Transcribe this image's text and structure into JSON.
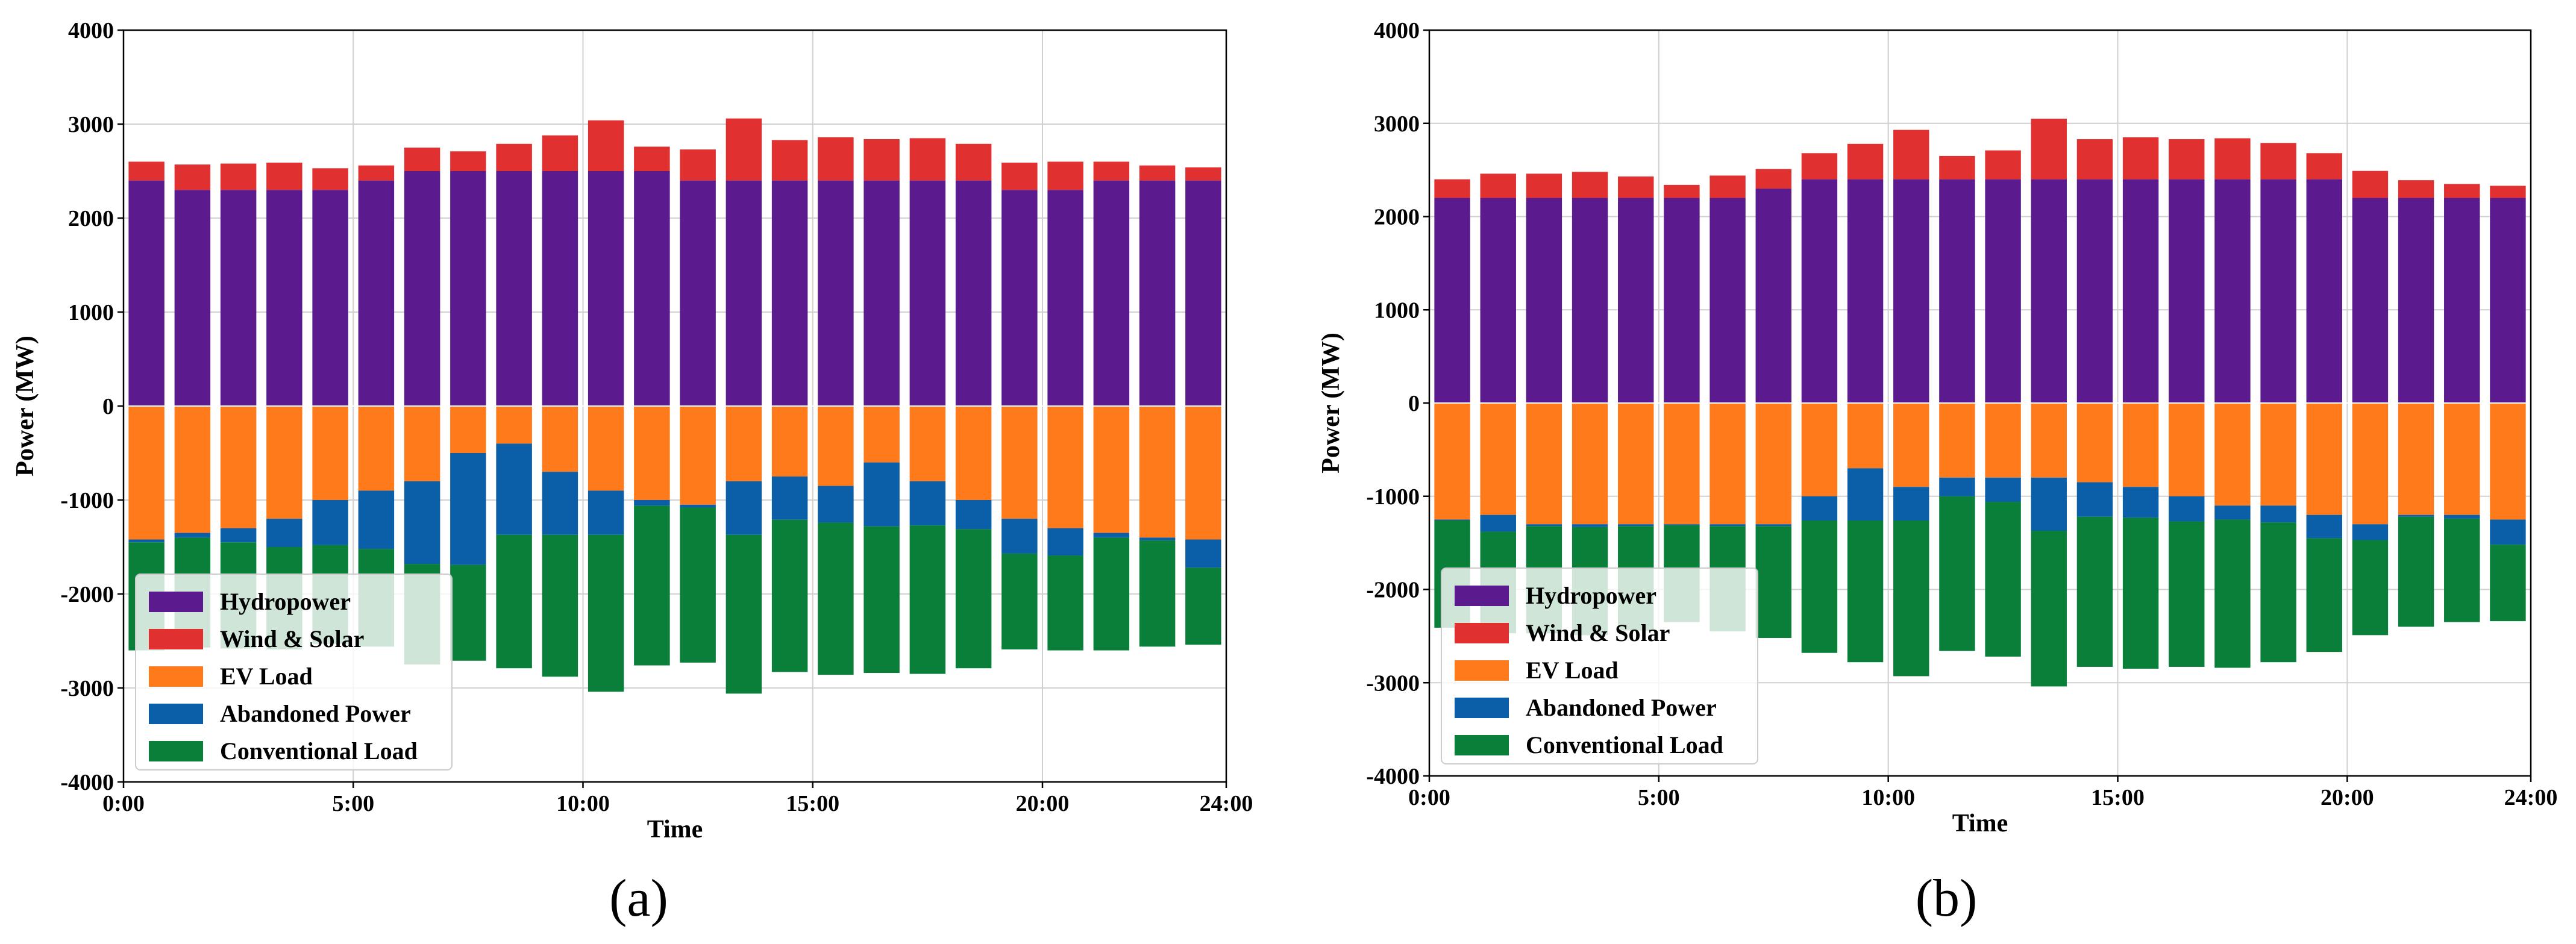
{
  "colors": {
    "hydro": "#5b1a8e",
    "wind_solar": "#e03030",
    "ev": "#ff7a1a",
    "abandoned": "#0a5fa8",
    "conventional": "#0a7f3a",
    "grid": "#d0d0d0"
  },
  "chart_data": [
    {
      "type": "bar",
      "panel_label": "(a)",
      "xlabel": "Time",
      "ylabel": "Power (MW)",
      "ylim": [
        -4000,
        4000
      ],
      "yticks": [
        -4000,
        -3000,
        -2000,
        -1000,
        0,
        1000,
        2000,
        3000,
        4000
      ],
      "xlim": [
        0,
        24
      ],
      "xticks": [
        0,
        5,
        10,
        15,
        20,
        24
      ],
      "xtick_labels": [
        "0:00",
        "5:00",
        "10:00",
        "15:00",
        "20:00",
        "24:00"
      ],
      "grid": true,
      "legend_position": "lower-left",
      "legend": [
        "Hydropower",
        "Wind & Solar",
        "EV Load",
        "Abandoned Power",
        "Conventional Load"
      ],
      "hours": [
        0,
        1,
        2,
        3,
        4,
        5,
        6,
        7,
        8,
        9,
        10,
        11,
        12,
        13,
        14,
        15,
        16,
        17,
        18,
        19,
        20,
        21,
        22,
        23
      ],
      "series": [
        {
          "name": "Hydropower",
          "key": "hydro",
          "values": [
            2400,
            2300,
            2300,
            2300,
            2300,
            2400,
            2500,
            2500,
            2500,
            2500,
            2500,
            2500,
            2400,
            2400,
            2400,
            2400,
            2400,
            2400,
            2400,
            2300,
            2300,
            2400,
            2400,
            2400
          ]
        },
        {
          "name": "Wind & Solar",
          "key": "wind_solar",
          "values": [
            200,
            270,
            280,
            290,
            230,
            160,
            250,
            210,
            290,
            380,
            540,
            260,
            330,
            660,
            430,
            460,
            440,
            450,
            390,
            290,
            300,
            200,
            160,
            140
          ]
        },
        {
          "name": "EV Load",
          "key": "ev",
          "values": [
            -1420,
            -1350,
            -1300,
            -1200,
            -1000,
            -900,
            -800,
            -500,
            -400,
            -700,
            -900,
            -1000,
            -1050,
            -800,
            -750,
            -850,
            -600,
            -800,
            -1000,
            -1200,
            -1300,
            -1350,
            -1400,
            -1420
          ]
        },
        {
          "name": "Abandoned Power",
          "key": "abandoned",
          "values": [
            -30,
            -50,
            -150,
            -300,
            -480,
            -620,
            -880,
            -1190,
            -970,
            -670,
            -470,
            -60,
            -30,
            -570,
            -460,
            -390,
            -680,
            -470,
            -310,
            -370,
            -290,
            -50,
            -30,
            -300
          ]
        },
        {
          "name": "Conventional Load",
          "key": "conventional",
          "values": [
            -1150,
            -1170,
            -1130,
            -1090,
            -1050,
            -1040,
            -1070,
            -1020,
            -1420,
            -1510,
            -1670,
            -1700,
            -1650,
            -1690,
            -1620,
            -1620,
            -1560,
            -1580,
            -1480,
            -1020,
            -1010,
            -1200,
            -1130,
            -820
          ]
        }
      ]
    },
    {
      "type": "bar",
      "panel_label": "(b)",
      "xlabel": "Time",
      "ylabel": "Power (MW)",
      "ylim": [
        -4000,
        4000
      ],
      "yticks": [
        -4000,
        -3000,
        -2000,
        -1000,
        0,
        1000,
        2000,
        3000,
        4000
      ],
      "xlim": [
        0,
        24
      ],
      "xticks": [
        0,
        5,
        10,
        15,
        20,
        24
      ],
      "xtick_labels": [
        "0:00",
        "5:00",
        "10:00",
        "15:00",
        "20:00",
        "24:00"
      ],
      "grid": true,
      "legend_position": "lower-left",
      "legend": [
        "Hydropower",
        "Wind & Solar",
        "EV Load",
        "Abandoned Power",
        "Conventional Load"
      ],
      "hours": [
        0,
        1,
        2,
        3,
        4,
        5,
        6,
        7,
        8,
        9,
        10,
        11,
        12,
        13,
        14,
        15,
        16,
        17,
        18,
        19,
        20,
        21,
        22,
        23
      ],
      "series": [
        {
          "name": "Hydropower",
          "key": "hydro",
          "values": [
            2200,
            2200,
            2200,
            2200,
            2200,
            2200,
            2200,
            2300,
            2400,
            2400,
            2400,
            2400,
            2400,
            2400,
            2400,
            2400,
            2400,
            2400,
            2400,
            2400,
            2200,
            2200,
            2200,
            2200
          ]
        },
        {
          "name": "Wind & Solar",
          "key": "wind_solar",
          "values": [
            200,
            260,
            260,
            280,
            230,
            140,
            240,
            210,
            280,
            380,
            530,
            250,
            310,
            650,
            430,
            450,
            430,
            440,
            390,
            280,
            290,
            190,
            150,
            130
          ]
        },
        {
          "name": "EV Load",
          "key": "ev",
          "values": [
            -1250,
            -1200,
            -1300,
            -1300,
            -1300,
            -1300,
            -1300,
            -1300,
            -1000,
            -700,
            -900,
            -800,
            -800,
            -800,
            -850,
            -900,
            -1000,
            -1100,
            -1100,
            -1200,
            -1300,
            -1200,
            -1200,
            -1250
          ]
        },
        {
          "name": "Abandoned Power",
          "key": "abandoned",
          "values": [
            -10,
            -180,
            -20,
            -30,
            -20,
            -10,
            -20,
            -20,
            -260,
            -560,
            -360,
            -200,
            -260,
            -570,
            -370,
            -330,
            -270,
            -150,
            -180,
            -250,
            -170,
            -20,
            -40,
            -270
          ]
        },
        {
          "name": "Conventional Load",
          "key": "conventional",
          "values": [
            -1150,
            -1090,
            -1150,
            -1160,
            -1120,
            -1040,
            -1130,
            -1200,
            -1420,
            -1520,
            -1670,
            -1660,
            -1660,
            -1670,
            -1610,
            -1620,
            -1560,
            -1590,
            -1500,
            -1220,
            -1020,
            -1180,
            -1110,
            -820
          ]
        }
      ]
    }
  ]
}
